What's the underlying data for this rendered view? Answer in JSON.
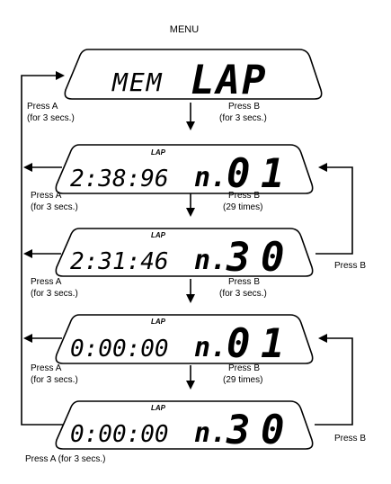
{
  "menu_label": "MENU",
  "top_screen": {
    "left": "MEM",
    "right": "LAP"
  },
  "screens": [
    {
      "tag": "LAP",
      "time": "2:38:96",
      "prefix": "n.",
      "lap_small": "0",
      "lap_big": "1"
    },
    {
      "tag": "LAP",
      "time": "2:31:46",
      "prefix": "n.",
      "lap_small": "3",
      "lap_big": "0"
    },
    {
      "tag": "LAP",
      "time": "0:00:00",
      "prefix": "n.",
      "lap_small": "0",
      "lap_big": "1"
    },
    {
      "tag": "LAP",
      "time": "0:00:00",
      "prefix": "n.",
      "lap_small": "3",
      "lap_big": "0"
    }
  ],
  "steps": [
    {
      "a_line1": "Press A",
      "a_line2": "(for 3 secs.)",
      "b_line1": "Press B",
      "b_line2": "(for 3 secs.)"
    },
    {
      "a_line1": "Press A",
      "a_line2": "(for 3 secs.)",
      "b_line1": "Press B",
      "b_line2": "(29 times)"
    },
    {
      "a_line1": "Press A",
      "a_line2": "(for 3 secs.)",
      "b_line1": "Press B",
      "b_line2": "(for 3 secs.)"
    },
    {
      "a_line1": "Press A",
      "a_line2": "(for 3 secs.)",
      "b_line1": "Press B",
      "b_line2": "(29 times)"
    }
  ],
  "loop_labels": [
    "Press B",
    "Press B"
  ],
  "bottom_label": "Press A (for 3 secs.)"
}
